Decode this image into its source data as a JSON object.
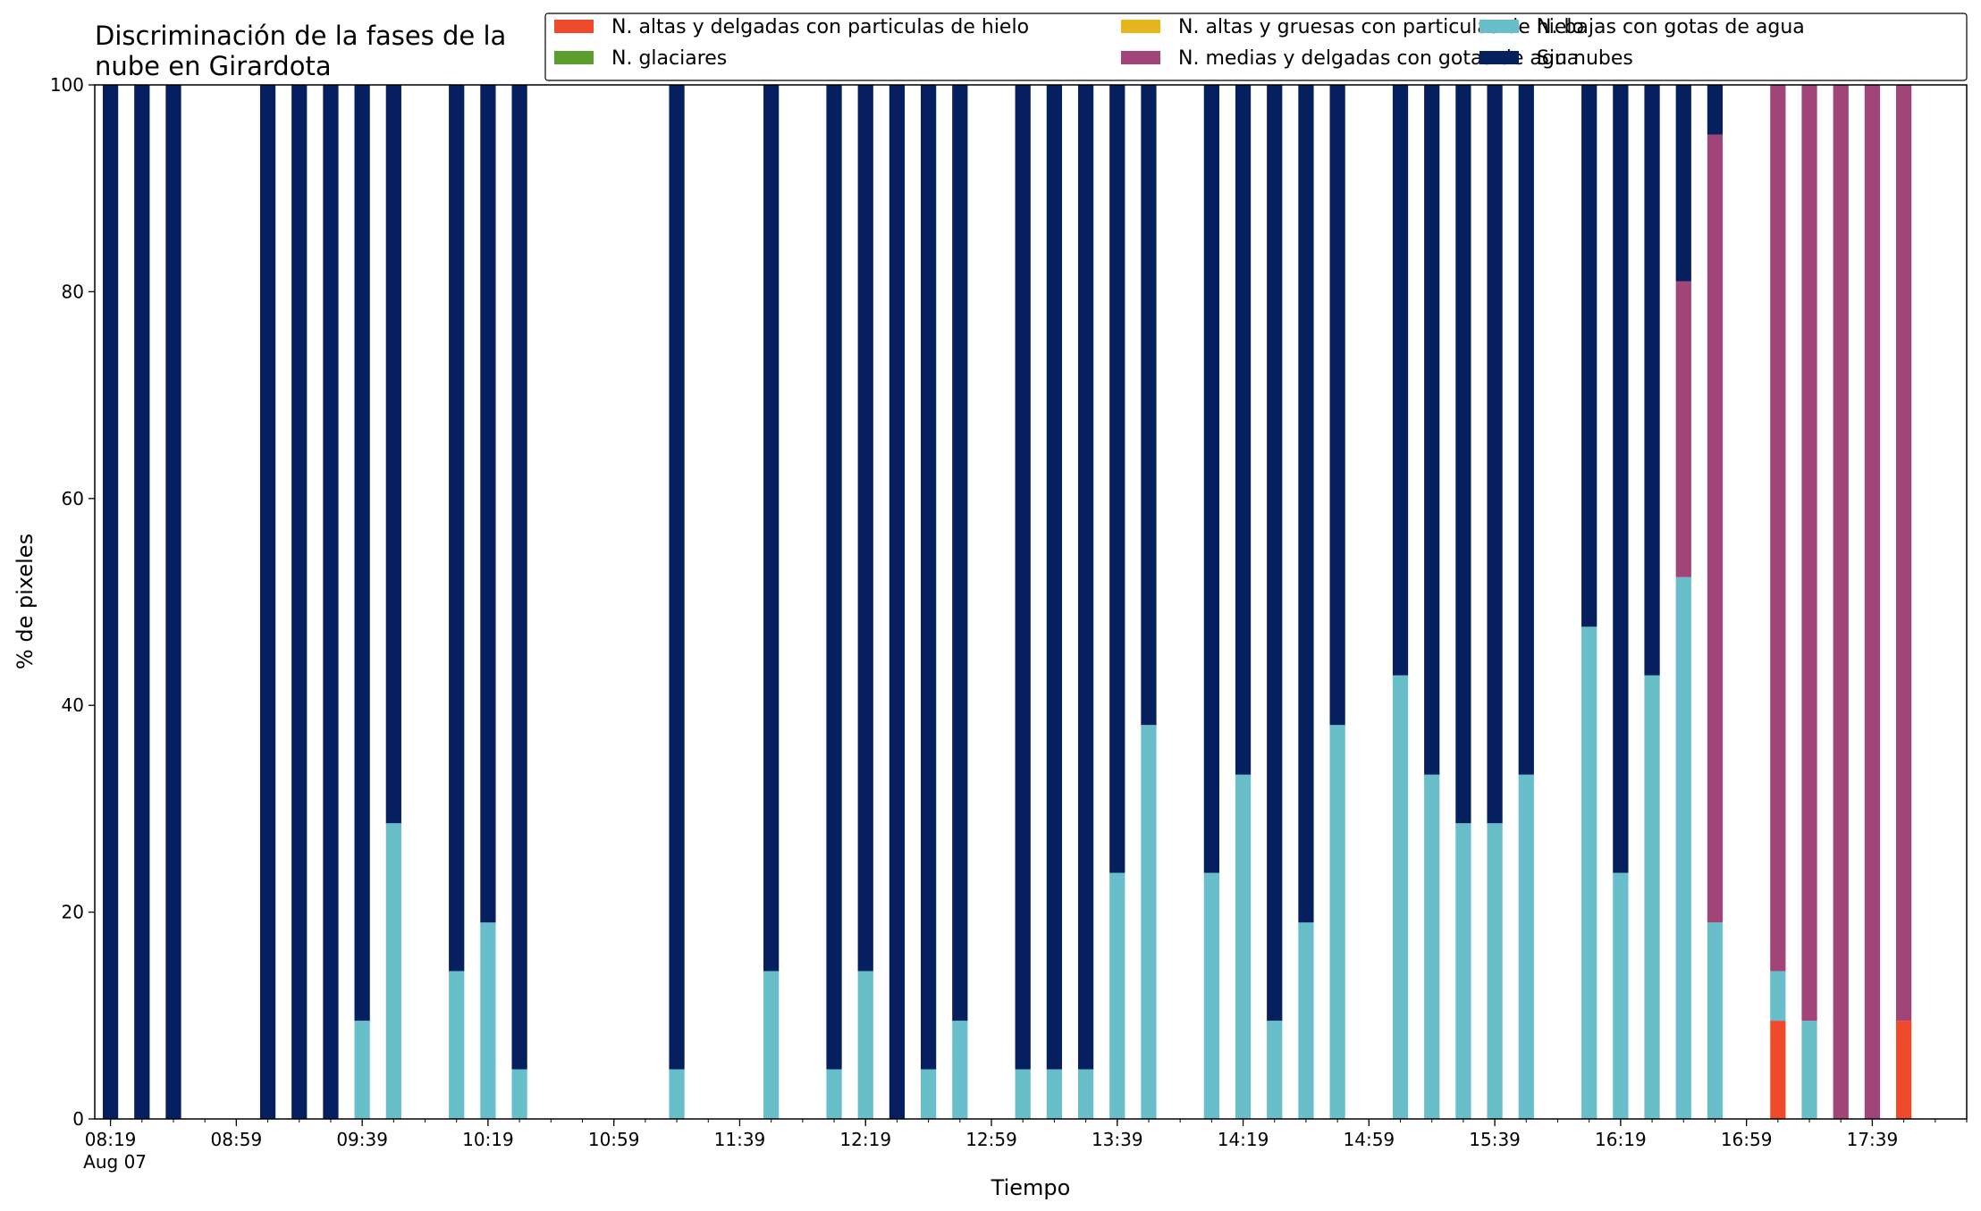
{
  "chart_data": {
    "type": "bar",
    "stacked": true,
    "title_lines": [
      "Discriminación de la fases de la",
      "nube en Girardota"
    ],
    "xlabel": "Tiempo",
    "ylabel": "% de pixeles",
    "ylim": [
      0,
      100
    ],
    "yticks": [
      0,
      20,
      40,
      60,
      80,
      100
    ],
    "xlim": [
      "08:14",
      "18:09"
    ],
    "xtick_labels": [
      {
        "time": "08:19",
        "label": "08:19",
        "sublabel": "Aug 07"
      },
      {
        "time": "08:59",
        "label": "08:59"
      },
      {
        "time": "09:39",
        "label": "09:39"
      },
      {
        "time": "10:19",
        "label": "10:19"
      },
      {
        "time": "10:59",
        "label": "10:59"
      },
      {
        "time": "11:39",
        "label": "11:39"
      },
      {
        "time": "12:19",
        "label": "12:19"
      },
      {
        "time": "12:59",
        "label": "12:59"
      },
      {
        "time": "13:39",
        "label": "13:39"
      },
      {
        "time": "14:19",
        "label": "14:19"
      },
      {
        "time": "14:59",
        "label": "14:59"
      },
      {
        "time": "15:39",
        "label": "15:39"
      },
      {
        "time": "16:19",
        "label": "16:19"
      },
      {
        "time": "16:59",
        "label": "16:59"
      },
      {
        "time": "17:39",
        "label": "17:39"
      }
    ],
    "minor_tick_step_minutes": 10,
    "grid": false,
    "legend_position": "top-right, 3 columns",
    "times": [
      "08:19",
      "08:29",
      "08:39",
      "09:09",
      "09:19",
      "09:29",
      "09:39",
      "09:49",
      "10:09",
      "10:19",
      "10:29",
      "11:19",
      "11:49",
      "12:09",
      "12:19",
      "12:29",
      "12:39",
      "12:49",
      "13:09",
      "13:19",
      "13:29",
      "13:39",
      "13:49",
      "14:09",
      "14:19",
      "14:29",
      "14:39",
      "14:49",
      "15:09",
      "15:19",
      "15:29",
      "15:39",
      "15:49",
      "16:09",
      "16:19",
      "16:29",
      "16:39",
      "16:49",
      "17:09",
      "17:19",
      "17:29",
      "17:39",
      "17:49"
    ],
    "series": [
      {
        "name": "N. altas y delgadas con particulas de hielo",
        "color": "#f04a2c",
        "values": [
          0,
          0,
          0,
          0,
          0,
          0,
          0,
          0,
          0,
          0,
          0,
          0,
          0,
          0,
          0,
          0,
          0,
          0,
          0,
          0,
          0,
          0,
          0,
          0,
          0,
          0,
          0,
          0,
          0,
          0,
          0,
          0,
          0,
          0,
          0,
          0,
          0,
          0,
          9.5,
          0,
          0,
          0,
          9.5
        ]
      },
      {
        "name": "N. altas y gruesas con particulas de hielo",
        "color": "#e6b71c",
        "values": [
          0,
          0,
          0,
          0,
          0,
          0,
          0,
          0,
          0,
          0,
          0,
          0,
          0,
          0,
          0,
          0,
          0,
          0,
          0,
          0,
          0,
          0,
          0,
          0,
          0,
          0,
          0,
          0,
          0,
          0,
          0,
          0,
          0,
          0,
          0,
          0,
          0,
          0,
          0,
          0,
          0,
          0,
          0
        ]
      },
      {
        "name": "N. bajas con gotas de agua",
        "color": "#68bfc9",
        "values": [
          0,
          0,
          0,
          0,
          0,
          0,
          9.5,
          28.6,
          14.3,
          19.0,
          4.8,
          4.8,
          14.3,
          4.8,
          14.3,
          0,
          4.8,
          9.5,
          4.8,
          4.8,
          4.8,
          23.8,
          38.1,
          23.8,
          33.3,
          9.5,
          19.0,
          38.1,
          42.9,
          33.3,
          28.6,
          28.6,
          33.3,
          47.6,
          23.8,
          42.9,
          52.4,
          19.0,
          4.8,
          9.5,
          0,
          0,
          0
        ]
      },
      {
        "name": "N. glaciares",
        "color": "#5a9e2e",
        "values": [
          0,
          0,
          0,
          0,
          0,
          0,
          0,
          0,
          0,
          0,
          0,
          0,
          0,
          0,
          0,
          0,
          0,
          0,
          0,
          0,
          0,
          0,
          0,
          0,
          0,
          0,
          0,
          0,
          0,
          0,
          0,
          0,
          0,
          0,
          0,
          0,
          0,
          0,
          0,
          0,
          0,
          0,
          0
        ]
      },
      {
        "name": "N. medias y delgadas con gotas de agua",
        "color": "#a14477",
        "values": [
          0,
          0,
          0,
          0,
          0,
          0,
          0,
          0,
          0,
          0,
          0,
          0,
          0,
          0,
          0,
          0,
          0,
          0,
          0,
          0,
          0,
          0,
          0,
          0,
          0,
          0,
          0,
          0,
          0,
          0,
          0,
          0,
          0,
          0,
          0,
          0,
          28.6,
          76.2,
          85.7,
          90.5,
          100,
          100,
          90.5
        ]
      },
      {
        "name": "Sin nubes",
        "color": "#061f5e",
        "values": [
          100,
          100,
          100,
          100,
          100,
          100,
          90.5,
          71.4,
          85.7,
          81.0,
          95.2,
          95.2,
          85.7,
          95.2,
          85.7,
          100,
          95.2,
          90.5,
          95.2,
          95.2,
          95.2,
          76.2,
          61.9,
          76.2,
          66.7,
          90.5,
          81.0,
          61.9,
          57.1,
          66.7,
          71.4,
          71.4,
          66.7,
          52.4,
          76.2,
          57.1,
          19.0,
          4.8,
          0,
          0,
          0,
          0,
          0
        ]
      }
    ],
    "legend_order": [
      0,
      1,
      2,
      3,
      4,
      5
    ]
  }
}
